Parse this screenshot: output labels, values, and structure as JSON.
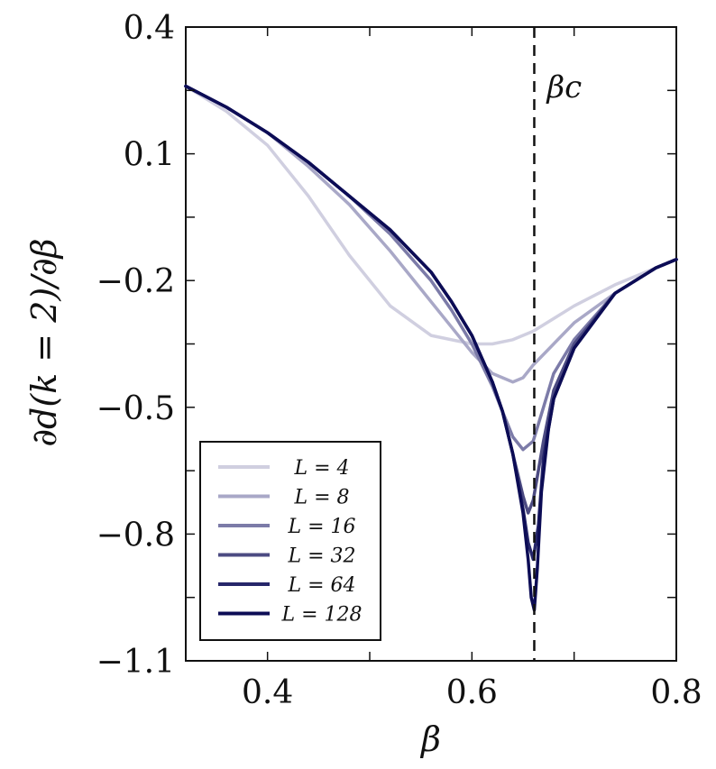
{
  "chart_data": {
    "type": "line",
    "title": "",
    "xlabel": "β",
    "ylabel": "∂d(k = 2)/∂β",
    "xlim": [
      0.32,
      0.8
    ],
    "ylim": [
      -1.1,
      0.4
    ],
    "xticks": [
      0.4,
      0.6,
      0.8
    ],
    "xtick_labels": [
      "0.4",
      "0.6",
      "0.8"
    ],
    "yticks": [
      -1.1,
      -0.8,
      -0.5,
      -0.2,
      0.1,
      0.4
    ],
    "ytick_labels": [
      "−1.1",
      "−0.8",
      "−0.5",
      "−0.2",
      "0.1",
      "0.4"
    ],
    "grid": false,
    "legend_position": "bottom-left",
    "annotation": {
      "label": "βc",
      "x": 0.661,
      "style": "dashed vertical line"
    },
    "series": [
      {
        "name": "L = 4",
        "color": "#d0cfe0",
        "x": [
          0.32,
          0.36,
          0.4,
          0.44,
          0.48,
          0.52,
          0.56,
          0.6,
          0.62,
          0.64,
          0.66,
          0.68,
          0.7,
          0.74,
          0.78,
          0.8
        ],
        "y": [
          0.26,
          0.2,
          0.12,
          0.0,
          -0.14,
          -0.26,
          -0.33,
          -0.35,
          -0.35,
          -0.34,
          -0.32,
          -0.29,
          -0.26,
          -0.21,
          -0.17,
          -0.15
        ]
      },
      {
        "name": "L = 8",
        "color": "#a9a8c7",
        "x": [
          0.32,
          0.36,
          0.4,
          0.44,
          0.48,
          0.52,
          0.56,
          0.58,
          0.6,
          0.62,
          0.64,
          0.65,
          0.66,
          0.68,
          0.7,
          0.74,
          0.78,
          0.8
        ],
        "y": [
          0.26,
          0.21,
          0.15,
          0.07,
          -0.02,
          -0.13,
          -0.25,
          -0.31,
          -0.37,
          -0.42,
          -0.44,
          -0.43,
          -0.4,
          -0.35,
          -0.3,
          -0.23,
          -0.17,
          -0.15
        ]
      },
      {
        "name": "L = 16",
        "color": "#7c7ba8",
        "x": [
          0.32,
          0.36,
          0.4,
          0.44,
          0.48,
          0.52,
          0.56,
          0.58,
          0.6,
          0.62,
          0.63,
          0.64,
          0.65,
          0.66,
          0.67,
          0.68,
          0.7,
          0.74,
          0.78,
          0.8
        ],
        "y": [
          0.26,
          0.21,
          0.15,
          0.08,
          0.0,
          -0.09,
          -0.2,
          -0.27,
          -0.35,
          -0.45,
          -0.51,
          -0.57,
          -0.6,
          -0.58,
          -0.5,
          -0.42,
          -0.34,
          -0.23,
          -0.17,
          -0.15
        ]
      },
      {
        "name": "L = 32",
        "color": "#4c4b82",
        "x": [
          0.32,
          0.36,
          0.4,
          0.44,
          0.48,
          0.52,
          0.56,
          0.58,
          0.6,
          0.62,
          0.63,
          0.64,
          0.65,
          0.655,
          0.66,
          0.67,
          0.68,
          0.7,
          0.74,
          0.78,
          0.8
        ],
        "y": [
          0.26,
          0.21,
          0.15,
          0.08,
          0.0,
          -0.08,
          -0.18,
          -0.25,
          -0.33,
          -0.44,
          -0.51,
          -0.61,
          -0.71,
          -0.75,
          -0.72,
          -0.58,
          -0.46,
          -0.35,
          -0.23,
          -0.17,
          -0.15
        ]
      },
      {
        "name": "L = 64",
        "color": "#26266a",
        "x": [
          0.32,
          0.36,
          0.4,
          0.44,
          0.48,
          0.52,
          0.56,
          0.58,
          0.6,
          0.62,
          0.63,
          0.64,
          0.65,
          0.655,
          0.66,
          0.665,
          0.67,
          0.68,
          0.7,
          0.74,
          0.78,
          0.8
        ],
        "y": [
          0.26,
          0.21,
          0.15,
          0.08,
          0.0,
          -0.08,
          -0.18,
          -0.25,
          -0.33,
          -0.44,
          -0.51,
          -0.61,
          -0.74,
          -0.82,
          -0.86,
          -0.78,
          -0.62,
          -0.48,
          -0.36,
          -0.23,
          -0.17,
          -0.15
        ]
      },
      {
        "name": "L = 128",
        "color": "#0c0c55",
        "x": [
          0.32,
          0.36,
          0.4,
          0.44,
          0.48,
          0.52,
          0.56,
          0.58,
          0.6,
          0.62,
          0.63,
          0.64,
          0.65,
          0.655,
          0.658,
          0.661,
          0.664,
          0.668,
          0.675,
          0.68,
          0.7,
          0.74,
          0.78,
          0.8
        ],
        "y": [
          0.26,
          0.21,
          0.15,
          0.08,
          0.0,
          -0.08,
          -0.18,
          -0.25,
          -0.33,
          -0.44,
          -0.51,
          -0.61,
          -0.75,
          -0.86,
          -0.95,
          -0.98,
          -0.88,
          -0.7,
          -0.55,
          -0.48,
          -0.36,
          -0.23,
          -0.17,
          -0.15
        ]
      }
    ]
  }
}
